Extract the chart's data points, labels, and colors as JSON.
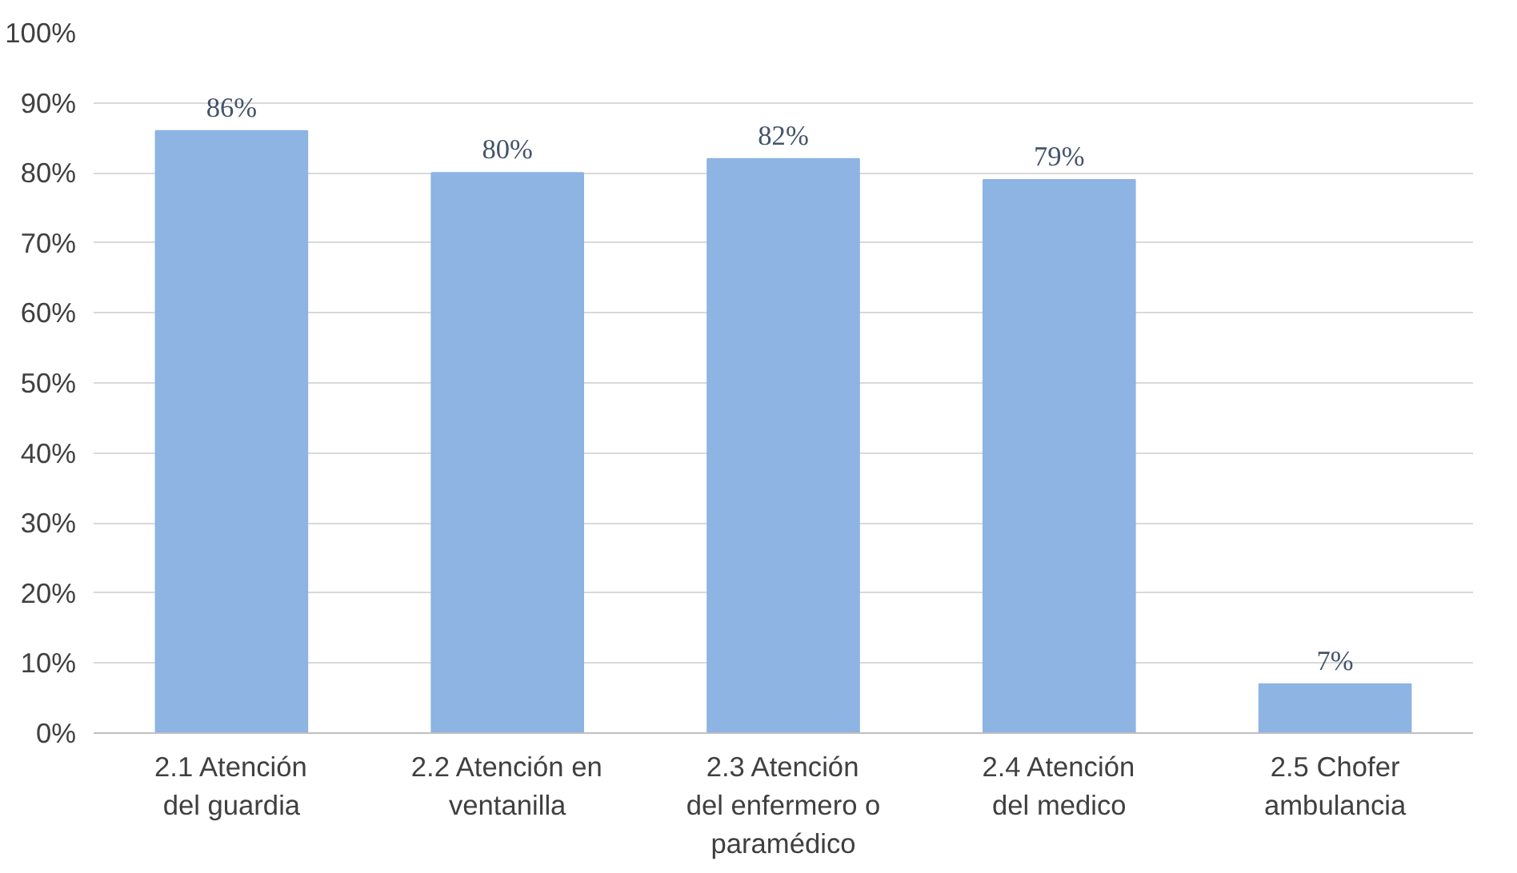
{
  "chart_data": {
    "type": "bar",
    "categories": [
      "2.1 Atención del guardia",
      "2.2 Atención en ventanilla",
      "2.3 Atención del enfermero o paramédico",
      "2.4 Atención del medico",
      "2.5 Chofer ambulancia"
    ],
    "values": [
      86,
      80,
      82,
      79,
      7
    ],
    "color": "#8db4e2",
    "ylim": [
      0,
      100
    ],
    "yticks": [
      {
        "value": 0,
        "label": "0%"
      },
      {
        "value": 10,
        "label": "10%"
      },
      {
        "value": 20,
        "label": "20%"
      },
      {
        "value": 30,
        "label": "30%"
      },
      {
        "value": 40,
        "label": "40%"
      },
      {
        "value": 50,
        "label": "50%"
      },
      {
        "value": 60,
        "label": "60%"
      },
      {
        "value": 70,
        "label": "70%"
      },
      {
        "value": 80,
        "label": "80%"
      },
      {
        "value": 90,
        "label": "90%"
      },
      {
        "value": 100,
        "label": "100%"
      }
    ],
    "value_labels": [
      "86%",
      "80%",
      "82%",
      "79%",
      "7%"
    ],
    "grid": "y"
  }
}
